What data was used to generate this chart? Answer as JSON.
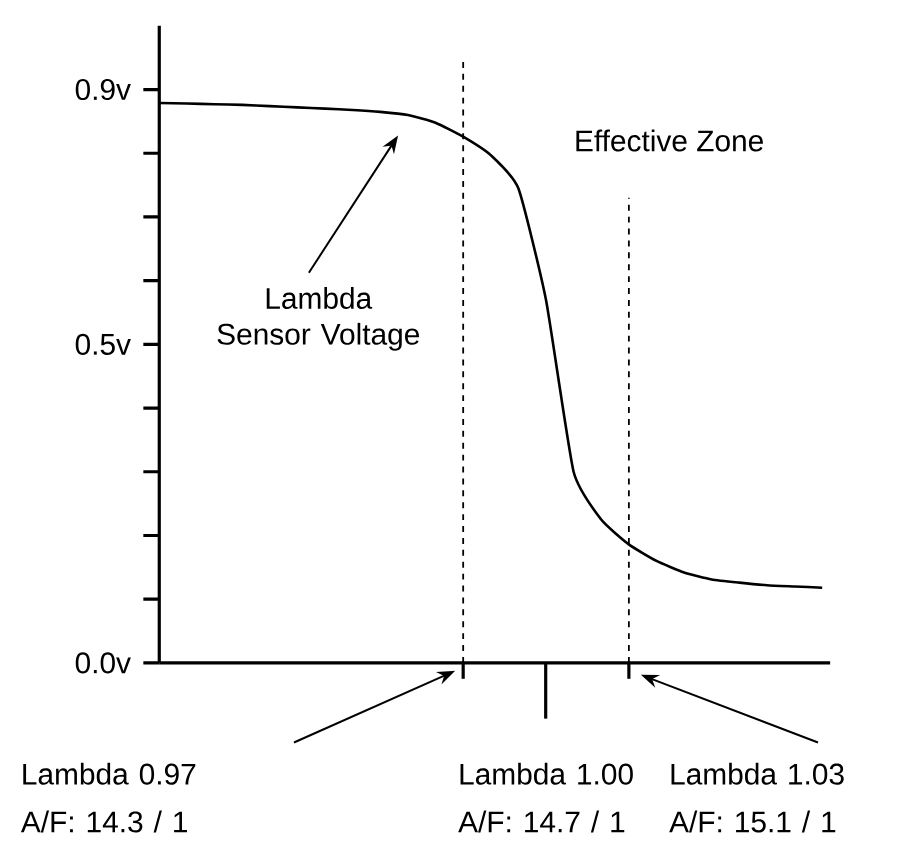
{
  "chart_data": {
    "type": "line",
    "color": "#000000",
    "marker": "none",
    "line_style": "solid",
    "categories": [
      null,
      null,
      null,
      null,
      null,
      null,
      null,
      null,
      null,
      null,
      null,
      null,
      null,
      null,
      null,
      null,
      null,
      null,
      null,
      null,
      null,
      null,
      null,
      null,
      null
    ],
    "values": [
      0.879,
      0.878,
      0.877,
      0.876,
      0.874,
      0.872,
      0.87,
      0.868,
      0.865,
      0.86,
      0.848,
      0.826,
      0.797,
      0.745,
      0.57,
      0.3,
      0.225,
      0.186,
      0.16,
      0.142,
      0.131,
      0.126,
      0.122,
      0.12,
      0.118
    ],
    "ylim": [
      0,
      1.0
    ],
    "yticks": [
      {
        "value": 0,
        "label": "0.0v"
      },
      {
        "value": 0.1,
        "label": null
      },
      {
        "value": 0.2,
        "label": null
      },
      {
        "value": 0.3,
        "label": null
      },
      {
        "value": 0.4,
        "label": null
      },
      {
        "value": 0.5,
        "label": "0.5v"
      },
      {
        "value": 0.6,
        "label": null
      },
      {
        "value": 0.7,
        "label": null
      },
      {
        "value": 0.8,
        "label": null
      },
      {
        "value": 0.9,
        "label": "0.9v"
      }
    ],
    "annotations": [
      "Effective Zone",
      "Lambda Sensor Voltage",
      "Lambda 0.97 A/F: 14.3 / 1",
      "Lambda 1.00 A/F: 14.7 / 1",
      "Lambda 1.03 A/F: 15.1 / 1"
    ]
  }
}
